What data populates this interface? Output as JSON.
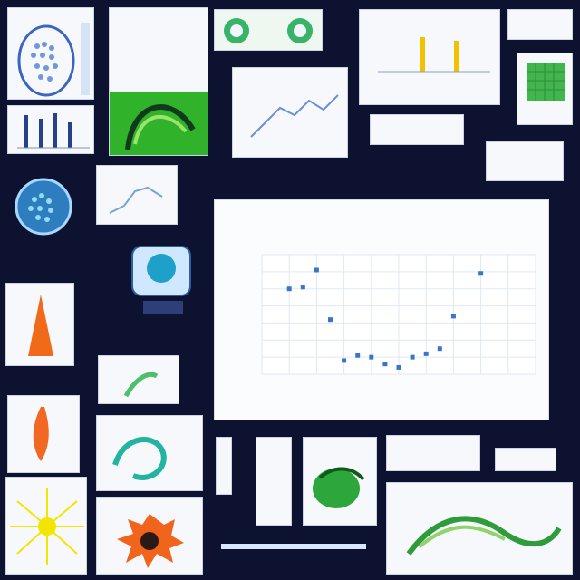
{
  "labels": {
    "top_chart_title": "",
    "top_chart_subtitle": "",
    "bottom_right_title": "",
    "bottom_right_subtitle": ""
  },
  "chart_data": {
    "type": "scatter",
    "title": "",
    "subtitle": "",
    "xlabel": "",
    "ylabel": "",
    "x_ticks": [],
    "y_ticks": [],
    "xlim": [
      0,
      10
    ],
    "ylim": [
      0,
      7
    ],
    "grid": true,
    "points": [
      {
        "x": 1.0,
        "y": 5.0
      },
      {
        "x": 1.5,
        "y": 5.1
      },
      {
        "x": 2.0,
        "y": 6.1
      },
      {
        "x": 2.5,
        "y": 3.2
      },
      {
        "x": 3.0,
        "y": 0.8
      },
      {
        "x": 3.5,
        "y": 1.1
      },
      {
        "x": 4.0,
        "y": 1.0
      },
      {
        "x": 4.5,
        "y": 0.6
      },
      {
        "x": 5.0,
        "y": 0.4
      },
      {
        "x": 5.5,
        "y": 1.0
      },
      {
        "x": 6.0,
        "y": 1.2
      },
      {
        "x": 6.5,
        "y": 1.5
      },
      {
        "x": 7.0,
        "y": 3.4
      },
      {
        "x": 8.0,
        "y": 5.9
      }
    ]
  }
}
